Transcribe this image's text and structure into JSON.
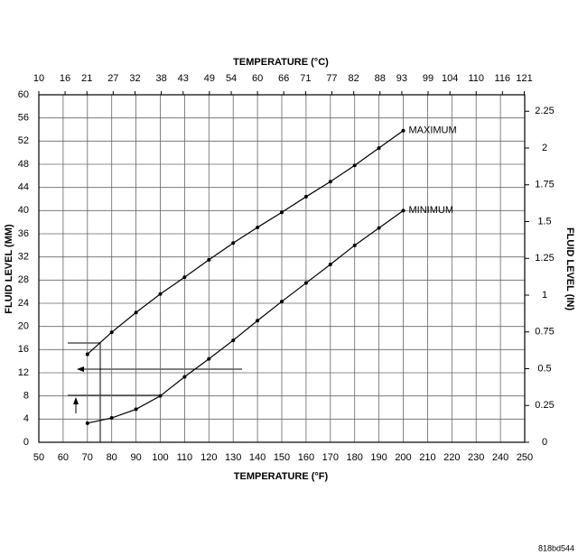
{
  "chart_data": {
    "type": "line",
    "top_axis_title": "TEMPERATURE (°C)",
    "xlabel": "TEMPERATURE (°F)",
    "ylabel": "FLUID LEVEL (MM)",
    "y2label": "FLUID LEVEL (IN)",
    "figure_code": "818bd544",
    "x": [
      70,
      80,
      90,
      100,
      110,
      120,
      130,
      140,
      150,
      160,
      170,
      180,
      190,
      200
    ],
    "series": [
      {
        "name": "MAXIMUM",
        "color": "#000000",
        "values": [
          15.2,
          19,
          22.4,
          25.6,
          28.5,
          31.5,
          34.4,
          37.1,
          39.7,
          42.4,
          45,
          47.8,
          50.8,
          53.8
        ]
      },
      {
        "name": "MINIMUM",
        "color": "#000000",
        "values": [
          3.3,
          4.2,
          5.7,
          8,
          11.3,
          14.4,
          17.6,
          21,
          24.3,
          27.5,
          30.7,
          34,
          37,
          40
        ]
      }
    ],
    "xlim": [
      50,
      250
    ],
    "xticks": [
      50,
      60,
      70,
      80,
      90,
      100,
      110,
      120,
      130,
      140,
      150,
      160,
      170,
      180,
      190,
      200,
      210,
      220,
      230,
      240,
      250
    ],
    "x2lim": [
      10,
      121.1
    ],
    "x2ticks": [
      10,
      16,
      21,
      27,
      32,
      38,
      43,
      49,
      54,
      60,
      66,
      71,
      77,
      82,
      88,
      93,
      99,
      104,
      110,
      116,
      121
    ],
    "ylim": [
      0,
      60
    ],
    "yticks": [
      0,
      4,
      8,
      12,
      16,
      20,
      24,
      28,
      32,
      36,
      40,
      44,
      48,
      52,
      56,
      60
    ],
    "y2lim": [
      0,
      2.362
    ],
    "y2ticks": [
      0,
      0.25,
      0.5,
      0.75,
      1,
      1.25,
      1.5,
      1.75,
      2,
      2.25
    ],
    "grid": true
  }
}
